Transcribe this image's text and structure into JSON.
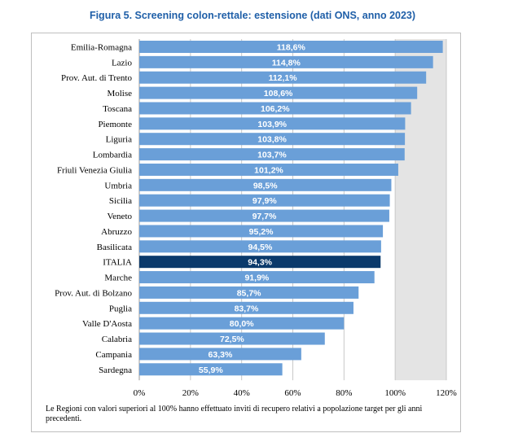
{
  "title": "Figura 5. Screening colon-rettale: estensione (dati ONS, anno 2023)",
  "note": "Le Regioni con valori superiori al 100% hanno effettuato inviti di recupero relativi a popolazione target per gli anni precedenti.",
  "colors": {
    "bar": "#6a9fd8",
    "highlight": "#0b3a6b",
    "title": "#1f5fa8",
    "band": "#e4e4e4"
  },
  "chart_data": {
    "type": "bar",
    "orientation": "horizontal",
    "categories": [
      "Emilia-Romagna",
      "Lazio",
      "Prov. Aut. di Trento",
      "Molise",
      "Toscana",
      "Piemonte",
      "Liguria",
      "Lombardia",
      "Friuli Venezia Giulia",
      "Umbria",
      "Sicilia",
      "Veneto",
      "Abruzzo",
      "Basilicata",
      "ITALIA",
      "Marche",
      "Prov. Aut. di Bolzano",
      "Puglia",
      "Valle D'Aosta",
      "Calabria",
      "Campania",
      "Sardegna"
    ],
    "values": [
      118.6,
      114.8,
      112.1,
      108.6,
      106.2,
      103.9,
      103.8,
      103.7,
      101.2,
      98.5,
      97.9,
      97.7,
      95.2,
      94.5,
      94.3,
      91.9,
      85.7,
      83.7,
      80.0,
      72.5,
      63.3,
      55.9
    ],
    "labels": [
      "118,6%",
      "114,8%",
      "112,1%",
      "108,6%",
      "106,2%",
      "103,9%",
      "103,8%",
      "103,7%",
      "101,2%",
      "98,5%",
      "97,9%",
      "97,7%",
      "95,2%",
      "94,5%",
      "94,3%",
      "91,9%",
      "85,7%",
      "83,7%",
      "80,0%",
      "72,5%",
      "63,3%",
      "55,9%"
    ],
    "highlight": "ITALIA",
    "xlim": [
      0,
      120
    ],
    "xticks": [
      "0%",
      "20%",
      "40%",
      "60%",
      "80%",
      "100%",
      "120%"
    ],
    "grid": true,
    "shaded_region": [
      100,
      120
    ]
  }
}
